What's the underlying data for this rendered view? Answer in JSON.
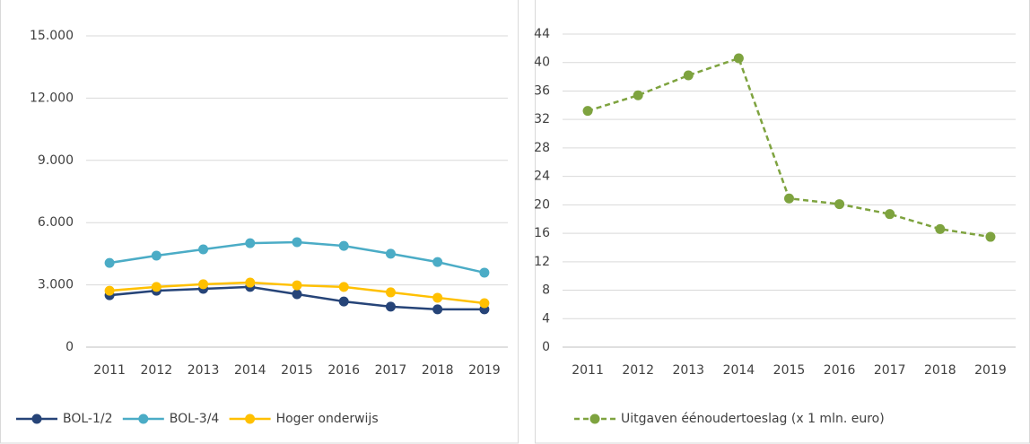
{
  "chart_data": [
    {
      "type": "line",
      "categories": [
        "2011",
        "2012",
        "2013",
        "2014",
        "2015",
        "2016",
        "2017",
        "2018",
        "2019"
      ],
      "series": [
        {
          "name": "BOL-1/2",
          "color": "#264478",
          "values": [
            2500,
            2720,
            2810,
            2900,
            2550,
            2200,
            1950,
            1820,
            1820
          ]
        },
        {
          "name": "BOL-3/4",
          "color": "#4bacc6",
          "values": [
            4060,
            4410,
            4710,
            5010,
            5060,
            4880,
            4500,
            4100,
            3590
          ]
        },
        {
          "name": "Hoger onderwijs",
          "color": "#ffc000",
          "values": [
            2720,
            2900,
            3030,
            3110,
            2980,
            2900,
            2640,
            2380,
            2120
          ]
        }
      ],
      "ylim": [
        0,
        15000
      ],
      "yticks": [
        0,
        {
          "value": 3000,
          "label": "3.000"
        },
        {
          "value": 6000,
          "label": "6.000"
        },
        {
          "value": 9000,
          "label": "9.000"
        },
        {
          "value": 12000,
          "label": "12.000"
        },
        {
          "value": 15000,
          "label": "15.000"
        }
      ],
      "grid": true,
      "legend": "bottom"
    },
    {
      "type": "line",
      "categories": [
        "2011",
        "2012",
        "2013",
        "2014",
        "2015",
        "2016",
        "2017",
        "2018",
        "2019"
      ],
      "series": [
        {
          "name": "Uitgaven éénoudertoeslag (x 1 mln. euro)",
          "color": "#7ea33f",
          "dashed": true,
          "values": [
            33.2,
            35.4,
            38.2,
            40.6,
            20.9,
            20.1,
            18.7,
            16.6,
            15.5
          ]
        }
      ],
      "ylim": [
        0,
        44
      ],
      "yticks": [
        0,
        4,
        8,
        12,
        16,
        20,
        24,
        28,
        32,
        36,
        40,
        44
      ],
      "grid": true,
      "legend": "bottom"
    }
  ]
}
